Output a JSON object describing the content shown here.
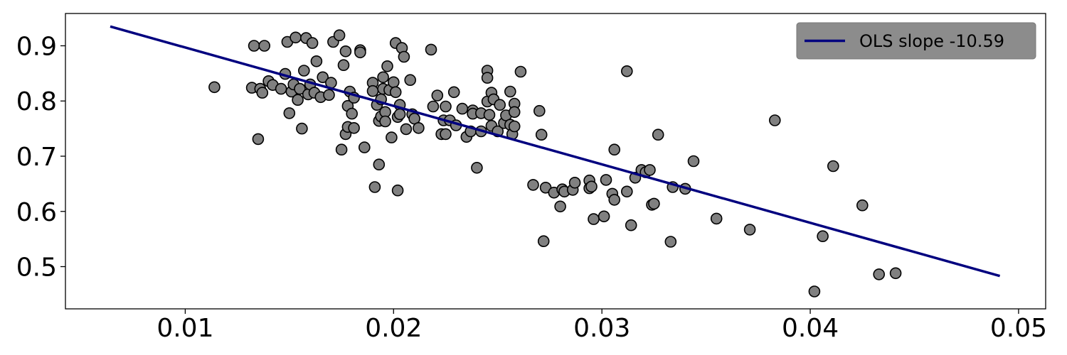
{
  "chart_data": {
    "type": "scatter",
    "title": "",
    "xlabel": "",
    "ylabel": "",
    "xlim": [
      0.00425,
      0.0513
    ],
    "ylim": [
      0.4235,
      0.9585
    ],
    "x_ticks": [
      0.01,
      0.02,
      0.03,
      0.04,
      0.05
    ],
    "x_tick_labels": [
      "0.01",
      "0.02",
      "0.03",
      "0.04",
      "0.05"
    ],
    "y_ticks": [
      0.5,
      0.6,
      0.7,
      0.8,
      0.9
    ],
    "y_tick_labels": [
      "0.5",
      "0.6",
      "0.7",
      "0.8",
      "0.9"
    ],
    "grid": false,
    "legend": {
      "position": "top-right",
      "entries": [
        "OLS slope -10.59"
      ]
    },
    "colors": {
      "points": "#808080",
      "point_edge": "#000000",
      "line": "#00007f",
      "legend_bg": "#8c8c8c"
    },
    "series": [
      {
        "kind": "points",
        "x": [
          0.0114,
          0.0132,
          0.0133,
          0.0135,
          0.0136,
          0.0137,
          0.0138,
          0.014,
          0.0142,
          0.0146,
          0.0148,
          0.0149,
          0.015,
          0.0151,
          0.0152,
          0.0153,
          0.0154,
          0.0155,
          0.0156,
          0.0157,
          0.0158,
          0.0159,
          0.016,
          0.0161,
          0.0162,
          0.0163,
          0.0165,
          0.0166,
          0.0169,
          0.017,
          0.0171,
          0.0174,
          0.0175,
          0.0176,
          0.0177,
          0.0177,
          0.0178,
          0.0178,
          0.0179,
          0.018,
          0.0181,
          0.0181,
          0.0184,
          0.0184,
          0.0186,
          0.019,
          0.019,
          0.0191,
          0.0192,
          0.0193,
          0.0193,
          0.0194,
          0.0194,
          0.0195,
          0.0195,
          0.0196,
          0.0196,
          0.0197,
          0.0198,
          0.0199,
          0.02,
          0.0201,
          0.0201,
          0.0202,
          0.0202,
          0.0203,
          0.0203,
          0.0204,
          0.0205,
          0.0206,
          0.0208,
          0.0209,
          0.021,
          0.0212,
          0.0218,
          0.0219,
          0.0221,
          0.0223,
          0.0224,
          0.0225,
          0.0225,
          0.0227,
          0.0229,
          0.023,
          0.0233,
          0.0235,
          0.0237,
          0.0238,
          0.0238,
          0.024,
          0.0242,
          0.0242,
          0.0245,
          0.0245,
          0.0245,
          0.0246,
          0.0247,
          0.0247,
          0.0248,
          0.025,
          0.0251,
          0.0253,
          0.0254,
          0.0256,
          0.0256,
          0.0257,
          0.0258,
          0.0258,
          0.0258,
          0.0261,
          0.0267,
          0.027,
          0.0271,
          0.0272,
          0.0273,
          0.0277,
          0.028,
          0.0281,
          0.0282,
          0.0286,
          0.0287,
          0.0294,
          0.0294,
          0.0295,
          0.0296,
          0.0301,
          0.0302,
          0.0305,
          0.0306,
          0.0306,
          0.0312,
          0.0312,
          0.0314,
          0.0316,
          0.0319,
          0.0321,
          0.0323,
          0.0324,
          0.0325,
          0.0327,
          0.0333,
          0.0334,
          0.034,
          0.0344,
          0.0355,
          0.0371,
          0.0383,
          0.0402,
          0.0406,
          0.0411,
          0.0425,
          0.0433,
          0.0441
        ],
        "y": [
          0.825,
          0.824,
          0.9,
          0.731,
          0.822,
          0.815,
          0.9,
          0.836,
          0.829,
          0.822,
          0.849,
          0.907,
          0.778,
          0.817,
          0.83,
          0.915,
          0.802,
          0.822,
          0.75,
          0.855,
          0.914,
          0.812,
          0.83,
          0.905,
          0.815,
          0.872,
          0.807,
          0.843,
          0.811,
          0.833,
          0.907,
          0.919,
          0.712,
          0.865,
          0.74,
          0.89,
          0.753,
          0.791,
          0.817,
          0.777,
          0.806,
          0.751,
          0.892,
          0.888,
          0.716,
          0.833,
          0.818,
          0.644,
          0.793,
          0.685,
          0.764,
          0.772,
          0.803,
          0.843,
          0.822,
          0.78,
          0.763,
          0.863,
          0.82,
          0.734,
          0.834,
          0.905,
          0.816,
          0.638,
          0.771,
          0.793,
          0.776,
          0.896,
          0.88,
          0.749,
          0.838,
          0.776,
          0.768,
          0.751,
          0.893,
          0.79,
          0.81,
          0.74,
          0.765,
          0.79,
          0.74,
          0.765,
          0.816,
          0.756,
          0.786,
          0.735,
          0.745,
          0.783,
          0.777,
          0.679,
          0.745,
          0.778,
          0.855,
          0.842,
          0.799,
          0.775,
          0.815,
          0.755,
          0.803,
          0.745,
          0.793,
          0.76,
          0.774,
          0.817,
          0.757,
          0.74,
          0.795,
          0.78,
          0.754,
          0.853,
          0.648,
          0.782,
          0.739,
          0.546,
          0.643,
          0.634,
          0.609,
          0.64,
          0.636,
          0.639,
          0.652,
          0.656,
          0.642,
          0.645,
          0.586,
          0.591,
          0.657,
          0.632,
          0.621,
          0.712,
          0.636,
          0.854,
          0.575,
          0.661,
          0.675,
          0.671,
          0.675,
          0.612,
          0.614,
          0.739,
          0.545,
          0.644,
          0.641,
          0.691,
          0.587,
          0.567,
          0.765,
          0.455,
          0.555,
          0.682,
          0.611,
          0.486,
          0.488
        ]
      },
      {
        "kind": "line",
        "name": "OLS slope -10.59",
        "x": [
          0.0064,
          0.0491
        ],
        "y": [
          0.935,
          0.483
        ]
      }
    ]
  }
}
